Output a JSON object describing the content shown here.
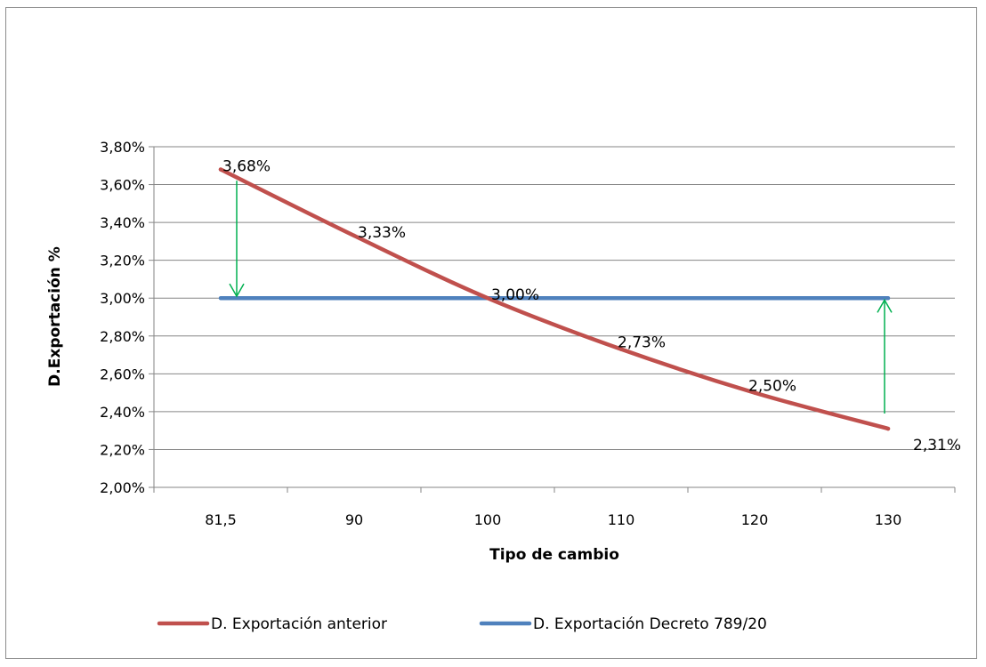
{
  "chart_data": {
    "type": "line",
    "title": "",
    "xlabel": "Tipo de cambio",
    "ylabel": "D.Exportación %",
    "categories": [
      "81,5",
      "90",
      "100",
      "110",
      "120",
      "130"
    ],
    "x": [
      81.5,
      90,
      100,
      110,
      120,
      130
    ],
    "ylim": [
      0.02,
      0.038
    ],
    "yticks": [
      0.02,
      0.022,
      0.024,
      0.026,
      0.028,
      0.03,
      0.032,
      0.034,
      0.036,
      0.038
    ],
    "ytick_labels": [
      "2,00%",
      "2,20%",
      "2,40%",
      "2,60%",
      "2,80%",
      "3,00%",
      "3,20%",
      "3,40%",
      "3,60%",
      "3,80%"
    ],
    "grid": "horizontal",
    "legend_position": "bottom",
    "series": [
      {
        "name": "D. Exportación anterior",
        "color": "#c0504d",
        "values": [
          0.0368,
          0.0333,
          0.03,
          0.0273,
          0.025,
          0.0231
        ],
        "labels": [
          "3,68%",
          "3,33%",
          "3,00%",
          "2,73%",
          "2,50%",
          "2,31%"
        ]
      },
      {
        "name": "D. Exportación Decreto 789/20",
        "color": "#4f81bd",
        "values": [
          0.03,
          0.03,
          0.03,
          0.03,
          0.03,
          0.03
        ]
      }
    ],
    "annotations": [
      {
        "type": "arrow",
        "color": "#00b050",
        "direction": "down",
        "at": "81,5",
        "from": 0.0362,
        "to": 0.0301
      },
      {
        "type": "arrow",
        "color": "#00b050",
        "direction": "up",
        "at": "130",
        "from": 0.0239,
        "to": 0.0299
      }
    ]
  }
}
